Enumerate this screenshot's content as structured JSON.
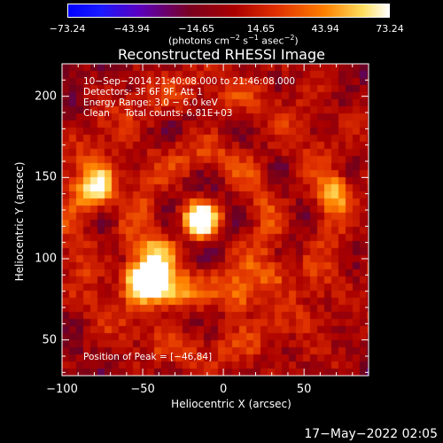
{
  "chart_data": {
    "type": "heatmap",
    "title": "Reconstructed RHESSI Image",
    "xlabel": "Heliocentric X (arcsec)",
    "ylabel": "Heliocentric Y (arcsec)",
    "xlim": [
      -100,
      90
    ],
    "ylim": [
      28,
      220
    ],
    "x_ticks": [
      "−100",
      "−50",
      "0",
      "50"
    ],
    "x_tick_values": [
      -100,
      -50,
      0,
      50
    ],
    "y_ticks": [
      "50",
      "100",
      "150",
      "200"
    ],
    "y_tick_values": [
      50,
      100,
      150,
      200
    ],
    "colorbar": {
      "labels": [
        "−73.24",
        "−43.94",
        "−14.65",
        "14.65",
        "43.94",
        "73.24"
      ],
      "values": [
        -73.24,
        -43.94,
        -14.65,
        14.65,
        43.94,
        73.24
      ],
      "range": [
        -73.24,
        73.24
      ],
      "units_prefix": "(photons cm",
      "units_exp1": "−2",
      "units_mid": " s",
      "units_exp2": "−1",
      "units_mid2": " asec",
      "units_exp3": "−2",
      "units_suffix": ")"
    },
    "info_lines": [
      "10−Sep−2014 21:40:08.000 to 21:46:08.000",
      "Detectors: 3F 6F 9F, Att 1",
      "Energy Range: 3.0 − 6.0 keV",
      "Clean     Total counts: 6.81E+03"
    ],
    "peak_text": "Position of Peak = [−46,84]",
    "peak": [
      -46,
      84
    ],
    "hotspots": [
      {
        "x": -14,
        "y": 124,
        "v": 73.24
      },
      {
        "x": -46,
        "y": 84,
        "v": 73.24
      },
      {
        "x": -50,
        "y": 88,
        "v": 60
      },
      {
        "x": -80,
        "y": 140,
        "v": 50
      },
      {
        "x": -40,
        "y": 104,
        "v": 45
      },
      {
        "x": -30,
        "y": 78,
        "v": 40
      },
      {
        "x": 70,
        "y": 140,
        "v": 42
      },
      {
        "x": 10,
        "y": 76,
        "v": 38
      },
      {
        "x": -75,
        "y": 150,
        "v": 35
      },
      {
        "x": 30,
        "y": 90,
        "v": 30
      }
    ]
  },
  "timestamp": "17−May−2022 02:05"
}
